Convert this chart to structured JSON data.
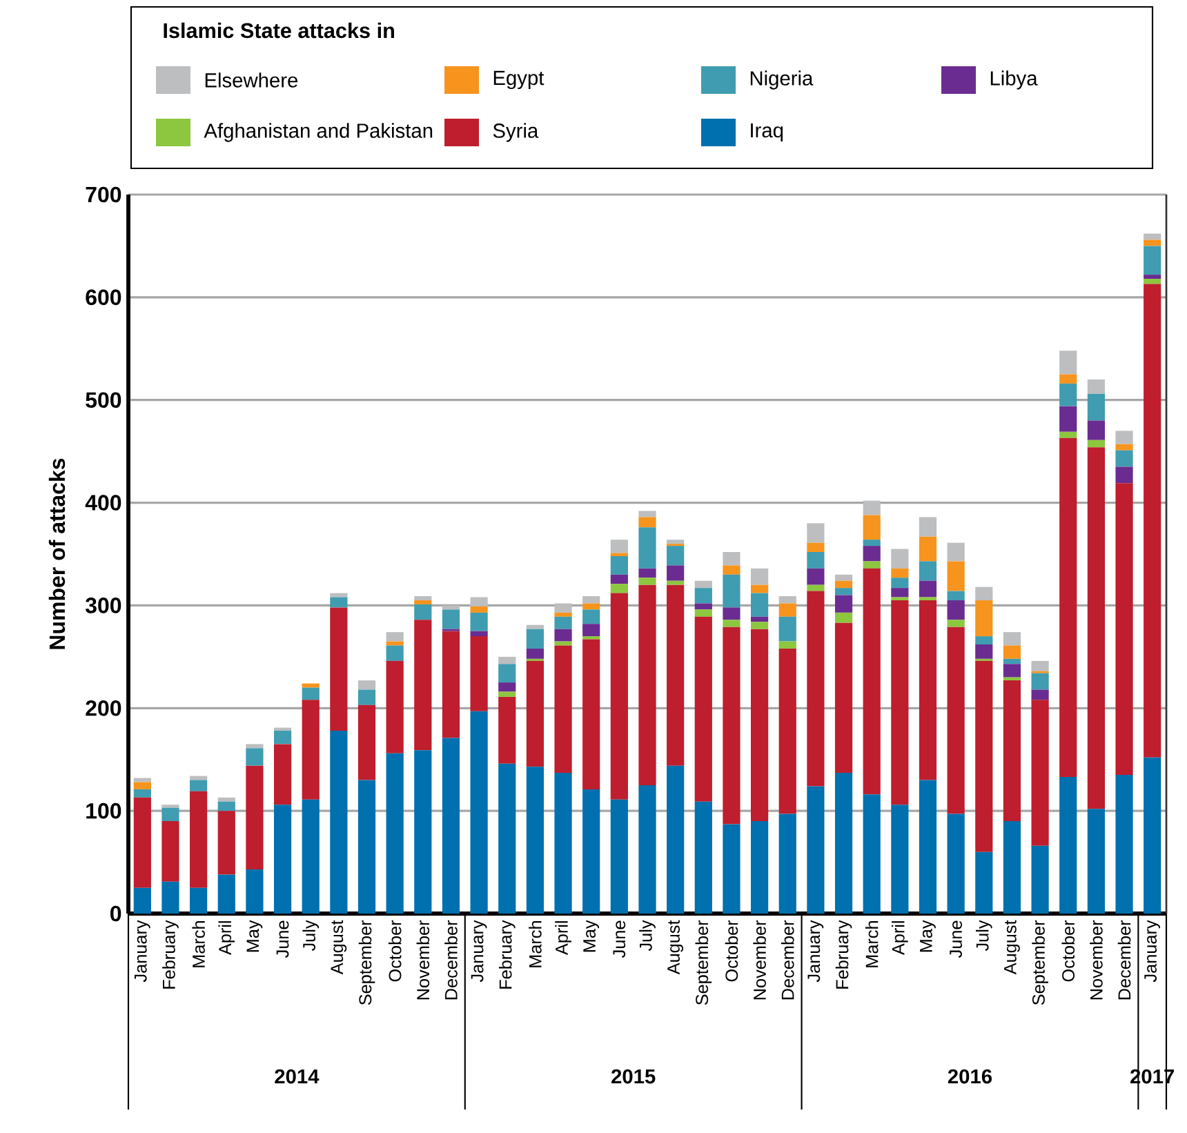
{
  "chart_data": {
    "type": "bar",
    "stacked": true,
    "legend_title": "Islamic State attacks in",
    "ylabel": "Number of attacks",
    "categories": [
      "January",
      "February",
      "March",
      "April",
      "May",
      "June",
      "July",
      "August",
      "September",
      "October",
      "November",
      "December",
      "January",
      "February",
      "March",
      "April",
      "May",
      "June",
      "July",
      "August",
      "September",
      "October",
      "November",
      "December",
      "January",
      "February",
      "March",
      "April",
      "May",
      "June",
      "July",
      "August",
      "September",
      "October",
      "November",
      "December",
      "January"
    ],
    "series": [
      {
        "name": "Iraq",
        "color": "#0070ae",
        "values": [
          25,
          31,
          25,
          38,
          43,
          106,
          111,
          178,
          130,
          156,
          159,
          171,
          197,
          146,
          143,
          137,
          121,
          111,
          125,
          144,
          109,
          87,
          90,
          97,
          124,
          137,
          116,
          106,
          130,
          97,
          60,
          90,
          66,
          133,
          102,
          135,
          152
        ]
      },
      {
        "name": "Syria",
        "color": "#be1e2d",
        "values": [
          88,
          59,
          94,
          62,
          101,
          59,
          97,
          120,
          73,
          90,
          127,
          104,
          73,
          65,
          103,
          124,
          146,
          201,
          195,
          176,
          180,
          192,
          187,
          161,
          190,
          146,
          220,
          199,
          175,
          182,
          186,
          137,
          142,
          330,
          352,
          284,
          461
        ]
      },
      {
        "name": "Afghanistan and Pakistan",
        "color": "#8dc63f",
        "values": [
          0,
          0,
          0,
          0,
          0,
          0,
          0,
          0,
          0,
          0,
          0,
          0,
          0,
          5,
          2,
          4,
          3,
          9,
          7,
          4,
          7,
          7,
          7,
          7,
          6,
          10,
          7,
          3,
          3,
          7,
          2,
          3,
          0,
          6,
          7,
          0,
          5
        ]
      },
      {
        "name": "Libya",
        "color": "#6a2c91",
        "values": [
          0,
          0,
          0,
          0,
          0,
          0,
          0,
          0,
          0,
          0,
          0,
          2,
          5,
          9,
          10,
          12,
          12,
          9,
          9,
          15,
          6,
          12,
          5,
          0,
          16,
          17,
          15,
          9,
          16,
          19,
          14,
          13,
          10,
          25,
          19,
          16,
          4
        ]
      },
      {
        "name": "Nigeria",
        "color": "#409cb0",
        "values": [
          8,
          13,
          11,
          9,
          17,
          13,
          12,
          10,
          15,
          15,
          15,
          19,
          18,
          18,
          19,
          12,
          14,
          18,
          40,
          19,
          15,
          32,
          23,
          24,
          16,
          7,
          6,
          10,
          19,
          9,
          8,
          5,
          16,
          22,
          26,
          16,
          28
        ]
      },
      {
        "name": "Egypt",
        "color": "#f7941d",
        "values": [
          7,
          0,
          0,
          0,
          0,
          0,
          4,
          0,
          0,
          4,
          4,
          0,
          6,
          0,
          0,
          4,
          6,
          3,
          10,
          2,
          0,
          9,
          8,
          13,
          9,
          7,
          24,
          9,
          24,
          29,
          35,
          13,
          2,
          9,
          0,
          6,
          6
        ]
      },
      {
        "name": "Elsewhere",
        "color": "#bcbec0",
        "values": [
          4,
          3,
          4,
          4,
          4,
          3,
          0,
          4,
          9,
          9,
          4,
          4,
          9,
          7,
          4,
          9,
          7,
          13,
          6,
          4,
          7,
          13,
          16,
          7,
          19,
          6,
          14,
          19,
          19,
          18,
          13,
          13,
          10,
          23,
          14,
          13,
          6
        ]
      }
    ],
    "ylim": [
      0,
      700
    ],
    "yticks": [
      0,
      100,
      200,
      300,
      400,
      500,
      600,
      700
    ],
    "grid": "y",
    "legend": "top",
    "annotations": [
      "2014",
      "2015",
      "2016",
      "2017"
    ]
  }
}
